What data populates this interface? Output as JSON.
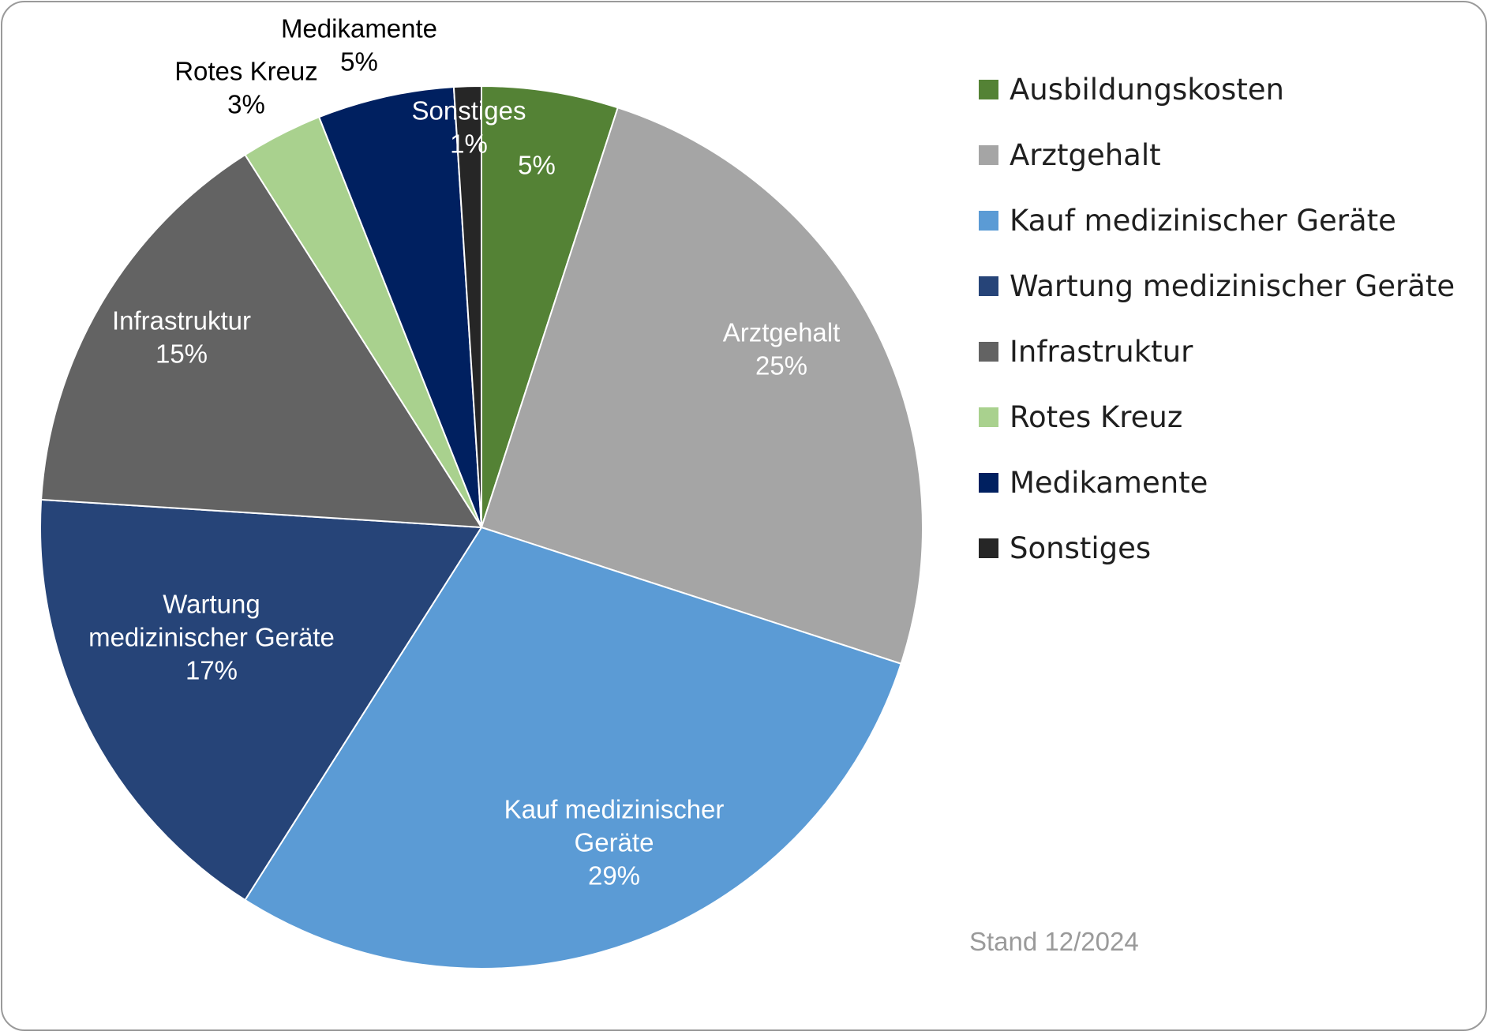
{
  "chart_data": {
    "type": "pie",
    "title": "",
    "slices": [
      {
        "name": "Ausbildungskosten",
        "value": 5,
        "label": "5%",
        "color": "#548235",
        "label_color": "#ffffff",
        "show_name": false
      },
      {
        "name": "Arztgehalt",
        "value": 25,
        "label": "25%",
        "color": "#a5a5a5",
        "label_color": "#ffffff",
        "show_name": true
      },
      {
        "name": "Kauf medizinischer Geräte",
        "value": 29,
        "label": "29%",
        "color": "#5b9bd5",
        "label_color": "#ffffff",
        "show_name": true
      },
      {
        "name": "Wartung medizinischer Geräte",
        "value": 17,
        "label": "17%",
        "color": "#264478",
        "label_color": "#ffffff",
        "show_name": true
      },
      {
        "name": "Infrastruktur",
        "value": 15,
        "label": "15%",
        "color": "#636363",
        "label_color": "#ffffff",
        "show_name": true
      },
      {
        "name": "Rotes Kreuz",
        "value": 3,
        "label": "3%",
        "color": "#a9d18e",
        "label_color": "#000000",
        "show_name": true
      },
      {
        "name": "Medikamente",
        "value": 5,
        "label": "5%",
        "color": "#002060",
        "label_color": "#000000",
        "show_name": true
      },
      {
        "name": "Sonstiges",
        "value": 1,
        "label": "1%",
        "color": "#262626",
        "label_color": "#ffffff",
        "show_name": true
      }
    ],
    "legend_position": "right"
  },
  "legend": {
    "items": [
      {
        "label": "Ausbildungskosten",
        "color": "#548235"
      },
      {
        "label": "Arztgehalt",
        "color": "#a5a5a5"
      },
      {
        "label": "Kauf medizinischer Geräte",
        "color": "#5b9bd5"
      },
      {
        "label": "Wartung medizinischer Geräte",
        "color": "#264478"
      },
      {
        "label": "Infrastruktur",
        "color": "#636363"
      },
      {
        "label": "Rotes Kreuz",
        "color": "#a9d18e"
      },
      {
        "label": "Medikamente",
        "color": "#002060"
      },
      {
        "label": "Sonstiges",
        "color": "#262626"
      }
    ]
  },
  "footer": {
    "stand": "Stand 12/2024"
  }
}
